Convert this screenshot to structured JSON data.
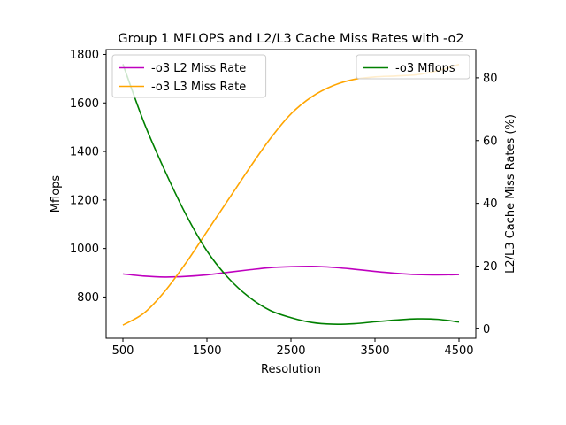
{
  "chart_data": {
    "type": "line",
    "title": "Group 1 MFLOPS and L2/L3 Cache Miss Rates with -o2",
    "xlabel": "Resolution",
    "ylabel_left": "Mflops",
    "ylabel_right": "L2/L3 Cache Miss Rates (%)",
    "x_ticks": [
      500,
      1500,
      2500,
      3500,
      4500
    ],
    "y_left_ticks": [
      800,
      1000,
      1200,
      1400,
      1600,
      1800
    ],
    "y_right_ticks": [
      0,
      20,
      40,
      60,
      80
    ],
    "xlim": [
      300,
      4700
    ],
    "ylim_left": [
      630,
      1820
    ],
    "ylim_right": [
      -3,
      89
    ],
    "grid": false,
    "legends": [
      {
        "placement": "upper-left",
        "series": [
          "-o3 L2 Miss Rate",
          "-o3 L3 Miss Rate"
        ]
      },
      {
        "placement": "upper-right",
        "series": [
          "-o3 Mflops"
        ]
      }
    ],
    "series": [
      {
        "name": "-o3 L2 Miss Rate",
        "axis": "right",
        "color": "#bf00bf",
        "x": [
          500,
          750,
          1000,
          1250,
          1500,
          1750,
          2000,
          2250,
          2500,
          2750,
          3000,
          3250,
          3500,
          3750,
          4000,
          4250,
          4500
        ],
        "y": [
          17.5,
          16.8,
          16.5,
          16.7,
          17.2,
          18.0,
          18.8,
          19.5,
          19.8,
          19.9,
          19.6,
          19.0,
          18.3,
          17.7,
          17.3,
          17.2,
          17.3
        ]
      },
      {
        "name": "-o3 L3 Miss Rate",
        "axis": "right",
        "color": "#ffa500",
        "x": [
          500,
          750,
          1000,
          1250,
          1500,
          1750,
          2000,
          2250,
          2500,
          2750,
          3000,
          3250,
          3500,
          3750,
          4000,
          4250,
          4500
        ],
        "y": [
          1.2,
          5.0,
          12.0,
          21.0,
          31.0,
          41.0,
          51.0,
          60.5,
          68.5,
          74.0,
          77.5,
          79.5,
          80.3,
          80.6,
          81.0,
          82.3,
          84.3
        ]
      },
      {
        "name": "-o3 Mflops",
        "axis": "left",
        "color": "#008000",
        "x": [
          500,
          750,
          1000,
          1250,
          1500,
          1750,
          2000,
          2250,
          2500,
          2750,
          3000,
          3250,
          3500,
          3750,
          4000,
          4250,
          4500
        ],
        "y": [
          1760,
          1520,
          1320,
          1140,
          990,
          880,
          800,
          745,
          715,
          695,
          688,
          690,
          698,
          705,
          710,
          708,
          697
        ]
      }
    ]
  }
}
